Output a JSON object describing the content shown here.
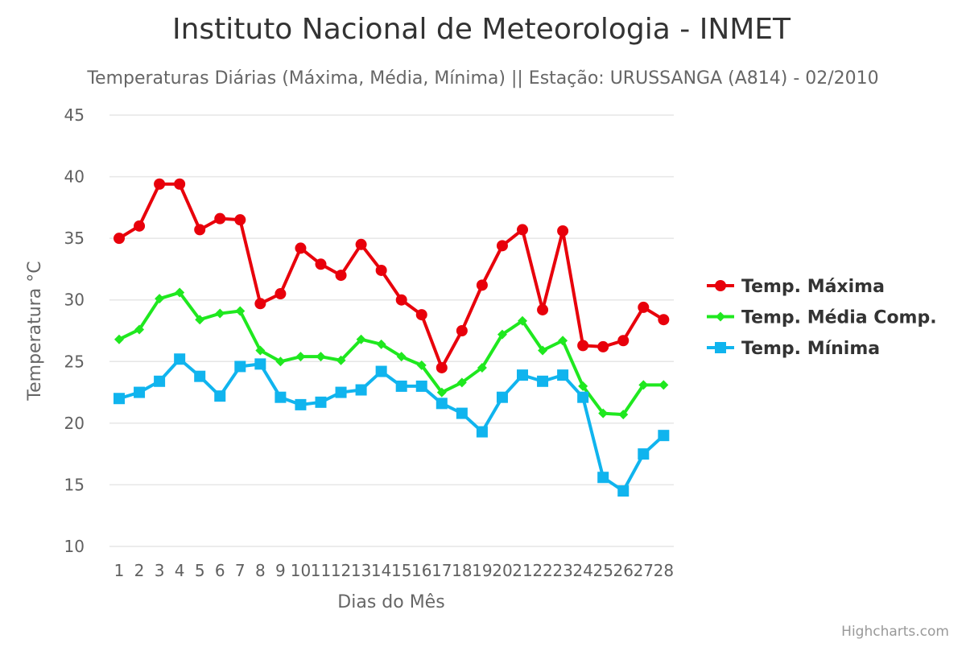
{
  "chart_data": {
    "type": "line",
    "title": "Instituto Nacional de Meteorologia - INMET",
    "subtitle": "Temperaturas Diárias (Máxima, Média, Mínima) || Estação: URUSSANGA (A814) - 02/2010",
    "xlabel": "Dias do Mês",
    "ylabel": "Temperatura °C",
    "ylim": [
      10,
      45
    ],
    "yticks": [
      10,
      15,
      20,
      25,
      30,
      35,
      40,
      45
    ],
    "categories": [
      "1",
      "2",
      "3",
      "4",
      "5",
      "6",
      "7",
      "8",
      "9",
      "10",
      "11",
      "12",
      "13",
      "14",
      "15",
      "16",
      "17",
      "18",
      "19",
      "20",
      "21",
      "22",
      "23",
      "24",
      "25",
      "26",
      "27",
      "28"
    ],
    "grid": true,
    "legend_position": "right",
    "series": [
      {
        "name": "Temp. Máxima",
        "color": "#e8000b",
        "marker": "circle",
        "values": [
          35.0,
          36.0,
          39.4,
          39.4,
          35.7,
          36.6,
          36.5,
          29.7,
          30.5,
          34.2,
          32.9,
          32.0,
          34.5,
          32.4,
          30.0,
          28.8,
          24.5,
          27.5,
          31.2,
          34.4,
          35.7,
          29.2,
          35.6,
          26.3,
          26.2,
          26.7,
          29.4,
          28.4
        ]
      },
      {
        "name": "Temp. Média Comp.",
        "color": "#1fe81f",
        "marker": "diamond",
        "values": [
          26.8,
          27.6,
          30.1,
          30.6,
          28.4,
          28.9,
          29.1,
          25.9,
          25.0,
          25.4,
          25.4,
          25.1,
          26.8,
          26.4,
          25.4,
          24.7,
          22.5,
          23.3,
          24.5,
          27.2,
          28.3,
          25.9,
          26.7,
          23.0,
          20.8,
          20.7,
          23.1,
          23.1
        ]
      },
      {
        "name": "Temp. Mínima",
        "color": "#10b4ee",
        "marker": "square",
        "values": [
          22.0,
          22.5,
          23.4,
          25.2,
          23.8,
          22.2,
          24.6,
          24.8,
          22.1,
          21.5,
          21.7,
          22.5,
          22.7,
          24.2,
          23.0,
          23.0,
          21.6,
          20.8,
          19.3,
          22.1,
          23.9,
          23.4,
          23.9,
          22.1,
          15.6,
          14.5,
          17.5,
          19.0
        ]
      }
    ]
  },
  "credits": "Highcharts.com"
}
